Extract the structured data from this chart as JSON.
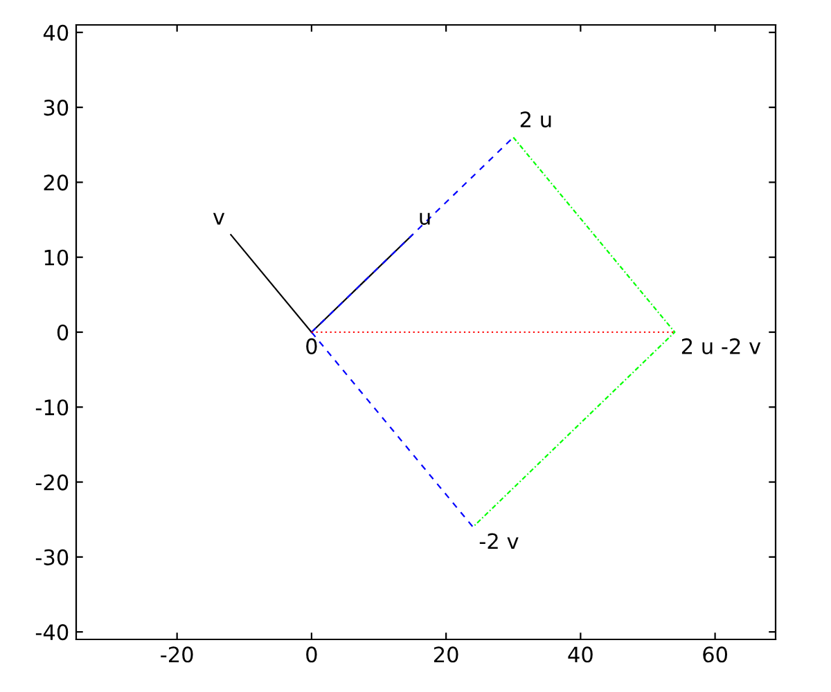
{
  "chart_data": {
    "type": "line",
    "xlim": [
      -35,
      69
    ],
    "ylim": [
      -41,
      41
    ],
    "xticks": [
      -20,
      0,
      20,
      40,
      60
    ],
    "yticks": [
      -40,
      -30,
      -20,
      -10,
      0,
      10,
      20,
      30,
      40
    ],
    "grid": false,
    "marker": "none",
    "series": [
      {
        "x": [
          0,
          -12
        ],
        "values": [
          0,
          13
        ],
        "color": "#000000",
        "line_style": "solid"
      },
      {
        "x": [
          0,
          15
        ],
        "values": [
          0,
          13
        ],
        "color": "#000000",
        "line_style": "solid"
      },
      {
        "x": [
          0,
          30
        ],
        "values": [
          0,
          26
        ],
        "color": "#0000ff",
        "line_style": "dashed"
      },
      {
        "x": [
          0,
          24
        ],
        "values": [
          0,
          -26
        ],
        "color": "#0000ff",
        "line_style": "dashed"
      },
      {
        "x": [
          30,
          54,
          24
        ],
        "values": [
          26,
          0,
          -26
        ],
        "color": "#00ff00",
        "line_style": "dashdot"
      },
      {
        "x": [
          0,
          54
        ],
        "values": [
          0,
          0
        ],
        "color": "#ff0000",
        "line_style": "dotted"
      }
    ],
    "annotations": [
      {
        "text": "v",
        "x": -12,
        "y": 13
      },
      {
        "text": "u",
        "x": 15,
        "y": 13
      },
      {
        "text": "2 u",
        "x": 30,
        "y": 26
      },
      {
        "text": "0",
        "x": 0,
        "y": 0
      },
      {
        "text": "2 u -2 v",
        "x": 54,
        "y": 0
      },
      {
        "text": "-2 v",
        "x": 24,
        "y": -26
      }
    ]
  }
}
